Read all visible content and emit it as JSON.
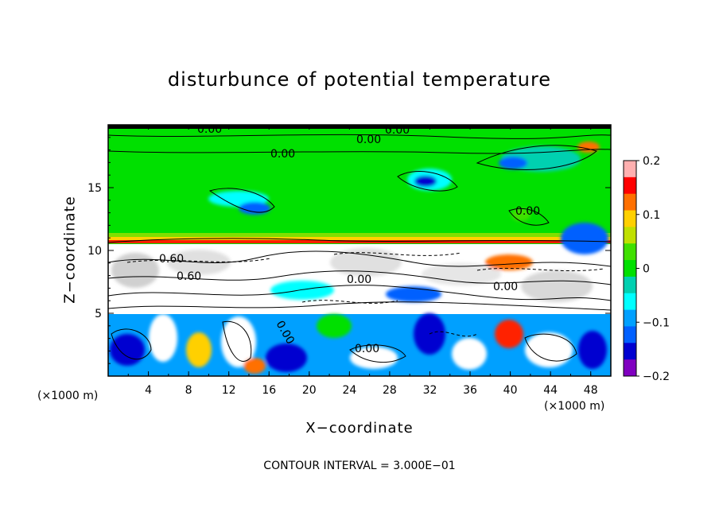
{
  "chart_data": {
    "type": "heatmap",
    "title": "disturbunce of potential temperature",
    "xlabel": "X−coordinate",
    "ylabel": "Z−coordinate",
    "x_unit_label": "(×1000 m)",
    "x_ticks": [
      "4",
      "8",
      "12",
      "16",
      "20",
      "24",
      "28",
      "32",
      "36",
      "40",
      "44",
      "48"
    ],
    "y_ticks": [
      "5",
      "10",
      "15"
    ],
    "xlim": [
      0,
      50
    ],
    "ylim": [
      0,
      20
    ],
    "colorbar": {
      "range": [
        -0.2,
        0.2
      ],
      "tick_labels": [
        "0.2",
        "0.1",
        "0",
        "−0.1",
        "−0.2"
      ],
      "colors": [
        "#ffb0b0",
        "#ff0000",
        "#ff7000",
        "#ffd000",
        "#c0e000",
        "#40e000",
        "#00e000",
        "#00d0b0",
        "#00ffff",
        "#00a0ff",
        "#0060ff",
        "#0000d0",
        "#8000c0"
      ]
    },
    "contour_labels": [
      "0.00",
      "0.00",
      "0.00",
      "0.00",
      "0.00",
      "0.60",
      "0.60",
      "0.00",
      "0.00",
      "0.00",
      "0.00"
    ],
    "contour_interval_note": "CONTOUR INTERVAL = 3.000E−01"
  }
}
